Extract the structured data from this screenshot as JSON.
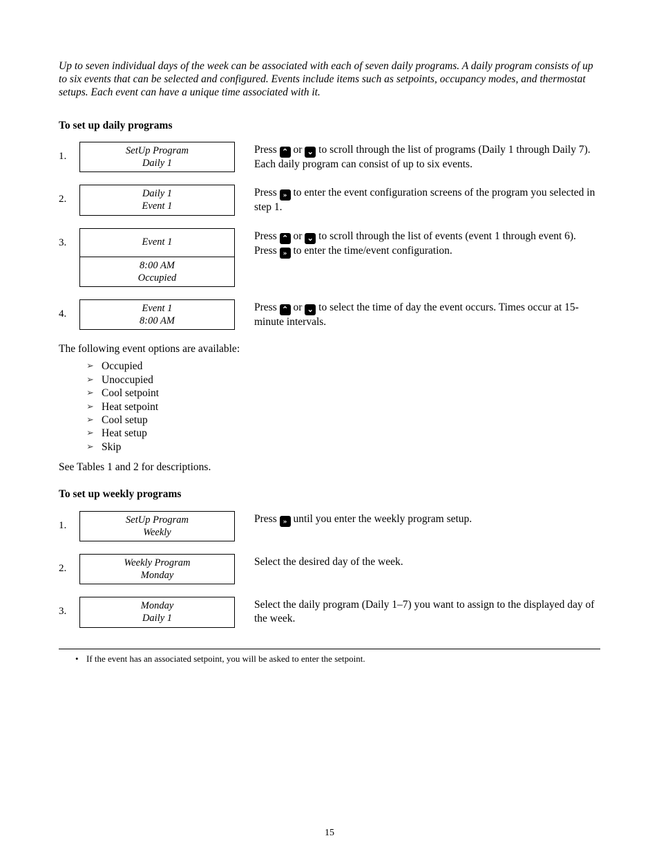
{
  "intro": "Up to seven individual days of the week can be associated with each of seven daily programs. A daily program consists of up to six events that can be selected and configured. Events include items such as setpoints, occupancy modes, and thermostat setups. Each event can have a unique time associated with it.",
  "sections": {
    "daily": {
      "title": "To set up daily programs",
      "steps": [
        {
          "num": "1.",
          "box": [
            "SetUp Program",
            "Daily 1"
          ],
          "desc_parts": [
            {
              "t": "Press ",
              "k": null
            },
            {
              "t": "",
              "k": "up"
            },
            {
              "t": " or ",
              "k": null
            },
            {
              "t": "",
              "k": "down"
            },
            {
              "t": " to scroll through the list of programs (Daily 1 through Daily 7). Each daily program can consist of up to six events.",
              "k": null
            }
          ]
        },
        {
          "num": "2.",
          "box": [
            "Daily 1",
            "Event 1"
          ],
          "desc_parts": [
            {
              "t": "Press ",
              "k": null
            },
            {
              "t": "",
              "k": "right"
            },
            {
              "t": " to enter the event configuration screens of the program you selected in step 1.",
              "k": null
            }
          ]
        },
        {
          "num": "3.",
          "box": [
            "Event 1",
            "8:00 AM",
            "Occupied"
          ],
          "desc_parts": [
            {
              "t": "Press ",
              "k": null
            },
            {
              "t": "",
              "k": "up"
            },
            {
              "t": " or ",
              "k": null
            },
            {
              "t": "",
              "k": "down"
            },
            {
              "t": " to scroll through the list of events (event 1 through event 6). Press ",
              "k": null
            },
            {
              "t": "",
              "k": "right"
            },
            {
              "t": " to enter the time/event configuration.",
              "k": null
            }
          ]
        },
        {
          "num": "4.",
          "box": [
            "Event 1",
            "8:00 AM"
          ],
          "desc_parts": [
            {
              "t": "Press ",
              "k": null
            },
            {
              "t": "",
              "k": "up"
            },
            {
              "t": " or ",
              "k": null
            },
            {
              "t": "",
              "k": "down"
            },
            {
              "t": " to select the time of day the event occurs. Times occur at 15-minute intervals.",
              "k": null
            }
          ]
        }
      ],
      "options_intro": "The following event options are available:",
      "options": [
        "Occupied",
        "Unoccupied",
        "Cool setpoint",
        "Heat setpoint",
        "Cool setup",
        "Heat setup",
        "Skip"
      ],
      "note": "See Tables 1 and 2 for descriptions."
    },
    "weekly": {
      "title": "To set up weekly programs",
      "steps": [
        {
          "num": "1.",
          "box": [
            "SetUp Program",
            "Weekly"
          ],
          "desc_parts": [
            {
              "t": "Press ",
              "k": null
            },
            {
              "t": "",
              "k": "right"
            },
            {
              "t": " until you enter the weekly program setup.",
              "k": null
            }
          ]
        },
        {
          "num": "2.",
          "box": [
            "Weekly Program",
            "Monday"
          ],
          "desc_parts": [
            {
              "t": "Select the desired day of the week.",
              "k": null
            }
          ]
        },
        {
          "num": "3.",
          "box": [
            "Monday",
            "Daily 1"
          ],
          "desc_parts": [
            {
              "t": "Select the daily program (Daily 1–7) you want to assign to the displayed day of the week.",
              "k": null
            }
          ]
        }
      ]
    }
  },
  "footnote": "If the event has an associated setpoint, you will be asked to enter the setpoint.",
  "page_number": "15",
  "icons": {
    "up": "⌃",
    "down": "⌄",
    "right": "»"
  },
  "colors": {
    "text": "#000000",
    "background": "#ffffff",
    "icon_bg": "#000000",
    "icon_fg": "#ffffff",
    "arrow_bullet": "#444444"
  },
  "fonts": {
    "body_family": "Times New Roman",
    "body_size_pt": 12,
    "box_style": "italic"
  }
}
